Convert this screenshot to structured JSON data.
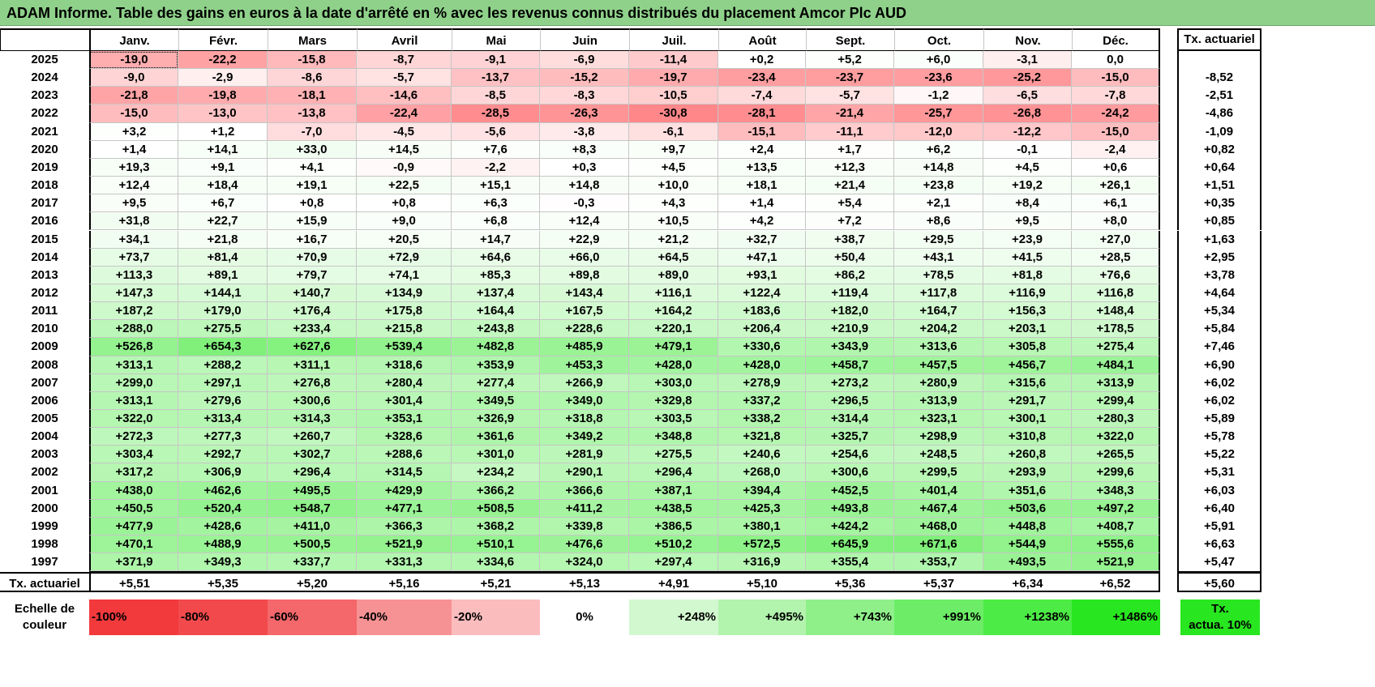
{
  "title": "ADAM Informe. Table des gains en euros à la date d'arrêté en % avec les revenus connus distribués du placement Amcor Plc AUD",
  "months": [
    "Janv.",
    "Févr.",
    "Mars",
    "Avril",
    "Mai",
    "Juin",
    "Juil.",
    "Août",
    "Sept.",
    "Oct.",
    "Nov.",
    "Déc."
  ],
  "tx_header": "Tx. actuariel",
  "rows": [
    {
      "year": "2025",
      "values": [
        "-19,0",
        "-22,2",
        "-15,8",
        "-8,7",
        "-9,1",
        "-6,9",
        "-11,4",
        "+0,2",
        "+5,2",
        "+6,0",
        "-3,1",
        "0,0"
      ],
      "tx": ""
    },
    {
      "year": "2024",
      "values": [
        "-9,0",
        "-2,9",
        "-8,6",
        "-5,7",
        "-13,7",
        "-15,2",
        "-19,7",
        "-23,4",
        "-23,7",
        "-23,6",
        "-25,2",
        "-15,0"
      ],
      "tx": "-8,52"
    },
    {
      "year": "2023",
      "values": [
        "-21,8",
        "-19,8",
        "-18,1",
        "-14,6",
        "-8,5",
        "-8,3",
        "-10,5",
        "-7,4",
        "-5,7",
        "-1,2",
        "-6,5",
        "-7,8"
      ],
      "tx": "-2,51"
    },
    {
      "year": "2022",
      "values": [
        "-15,0",
        "-13,0",
        "-13,8",
        "-22,4",
        "-28,5",
        "-26,3",
        "-30,8",
        "-28,1",
        "-21,4",
        "-25,7",
        "-26,8",
        "-24,2"
      ],
      "tx": "-4,86"
    },
    {
      "year": "2021",
      "values": [
        "+3,2",
        "+1,2",
        "-7,0",
        "-4,5",
        "-5,6",
        "-3,8",
        "-6,1",
        "-15,1",
        "-11,1",
        "-12,0",
        "-12,2",
        "-15,0"
      ],
      "tx": "-1,09"
    },
    {
      "year": "2020",
      "values": [
        "+1,4",
        "+14,1",
        "+33,0",
        "+14,5",
        "+7,6",
        "+8,3",
        "+9,7",
        "+2,4",
        "+1,7",
        "+6,2",
        "-0,1",
        "-2,4"
      ],
      "tx": "+0,82"
    },
    {
      "year": "2019",
      "values": [
        "+19,3",
        "+9,1",
        "+4,1",
        "-0,9",
        "-2,2",
        "+0,3",
        "+4,5",
        "+13,5",
        "+12,3",
        "+14,8",
        "+4,5",
        "+0,6"
      ],
      "tx": "+0,64"
    },
    {
      "year": "2018",
      "values": [
        "+12,4",
        "+18,4",
        "+19,1",
        "+22,5",
        "+15,1",
        "+14,8",
        "+10,0",
        "+18,1",
        "+21,4",
        "+23,8",
        "+19,2",
        "+26,1"
      ],
      "tx": "+1,51"
    },
    {
      "year": "2017",
      "values": [
        "+9,5",
        "+6,7",
        "+0,8",
        "+0,8",
        "+6,3",
        "-0,3",
        "+4,3",
        "+1,4",
        "+5,4",
        "+2,1",
        "+8,4",
        "+6,1"
      ],
      "tx": "+0,35"
    },
    {
      "year": "2016",
      "values": [
        "+31,8",
        "+22,7",
        "+15,9",
        "+9,0",
        "+6,8",
        "+12,4",
        "+10,5",
        "+4,2",
        "+7,2",
        "+8,6",
        "+9,5",
        "+8,0"
      ],
      "tx": "+0,85"
    },
    {
      "year": "2015",
      "values": [
        "+34,1",
        "+21,8",
        "+16,7",
        "+20,5",
        "+14,7",
        "+22,9",
        "+21,2",
        "+32,7",
        "+38,7",
        "+29,5",
        "+23,9",
        "+27,0"
      ],
      "tx": "+1,63"
    },
    {
      "year": "2014",
      "values": [
        "+73,7",
        "+81,4",
        "+70,9",
        "+72,9",
        "+64,6",
        "+66,0",
        "+64,5",
        "+47,1",
        "+50,4",
        "+43,1",
        "+41,5",
        "+28,5"
      ],
      "tx": "+2,95"
    },
    {
      "year": "2013",
      "values": [
        "+113,3",
        "+89,1",
        "+79,7",
        "+74,1",
        "+85,3",
        "+89,8",
        "+89,0",
        "+93,1",
        "+86,2",
        "+78,5",
        "+81,8",
        "+76,6"
      ],
      "tx": "+3,78"
    },
    {
      "year": "2012",
      "values": [
        "+147,3",
        "+144,1",
        "+140,7",
        "+134,9",
        "+137,4",
        "+143,4",
        "+116,1",
        "+122,4",
        "+119,4",
        "+117,8",
        "+116,9",
        "+116,8"
      ],
      "tx": "+4,64"
    },
    {
      "year": "2011",
      "values": [
        "+187,2",
        "+179,0",
        "+176,4",
        "+175,8",
        "+164,4",
        "+167,5",
        "+164,2",
        "+183,6",
        "+182,0",
        "+164,7",
        "+156,3",
        "+148,4"
      ],
      "tx": "+5,34"
    },
    {
      "year": "2010",
      "values": [
        "+288,0",
        "+275,5",
        "+233,4",
        "+215,8",
        "+243,8",
        "+228,6",
        "+220,1",
        "+206,4",
        "+210,9",
        "+204,2",
        "+203,1",
        "+178,5"
      ],
      "tx": "+5,84"
    },
    {
      "year": "2009",
      "values": [
        "+526,8",
        "+654,3",
        "+627,6",
        "+539,4",
        "+482,8",
        "+485,9",
        "+479,1",
        "+330,6",
        "+343,9",
        "+313,6",
        "+305,8",
        "+275,4"
      ],
      "tx": "+7,46"
    },
    {
      "year": "2008",
      "values": [
        "+313,1",
        "+288,2",
        "+311,1",
        "+318,6",
        "+353,9",
        "+453,3",
        "+428,0",
        "+428,0",
        "+458,7",
        "+457,5",
        "+456,7",
        "+484,1"
      ],
      "tx": "+6,90"
    },
    {
      "year": "2007",
      "values": [
        "+299,0",
        "+297,1",
        "+276,8",
        "+280,4",
        "+277,4",
        "+266,9",
        "+303,0",
        "+278,9",
        "+273,2",
        "+280,9",
        "+315,6",
        "+313,9"
      ],
      "tx": "+6,02"
    },
    {
      "year": "2006",
      "values": [
        "+313,1",
        "+279,6",
        "+300,6",
        "+301,4",
        "+349,5",
        "+349,0",
        "+329,8",
        "+337,2",
        "+296,5",
        "+313,9",
        "+291,7",
        "+299,4"
      ],
      "tx": "+6,02"
    },
    {
      "year": "2005",
      "values": [
        "+322,0",
        "+313,4",
        "+314,3",
        "+353,1",
        "+326,9",
        "+318,8",
        "+303,5",
        "+338,2",
        "+314,4",
        "+323,1",
        "+300,1",
        "+280,3"
      ],
      "tx": "+5,89"
    },
    {
      "year": "2004",
      "values": [
        "+272,3",
        "+277,3",
        "+260,7",
        "+328,6",
        "+361,6",
        "+349,2",
        "+348,8",
        "+321,8",
        "+325,7",
        "+298,9",
        "+310,8",
        "+322,0"
      ],
      "tx": "+5,78"
    },
    {
      "year": "2003",
      "values": [
        "+303,4",
        "+292,7",
        "+302,7",
        "+288,6",
        "+301,0",
        "+281,9",
        "+275,5",
        "+240,6",
        "+254,6",
        "+248,5",
        "+260,8",
        "+265,5"
      ],
      "tx": "+5,22"
    },
    {
      "year": "2002",
      "values": [
        "+317,2",
        "+306,9",
        "+296,4",
        "+314,5",
        "+234,2",
        "+290,1",
        "+296,4",
        "+268,0",
        "+300,6",
        "+299,5",
        "+293,9",
        "+299,6"
      ],
      "tx": "+5,31"
    },
    {
      "year": "2001",
      "values": [
        "+438,0",
        "+462,6",
        "+495,5",
        "+429,9",
        "+366,2",
        "+366,6",
        "+387,1",
        "+394,4",
        "+452,5",
        "+401,4",
        "+351,6",
        "+348,3"
      ],
      "tx": "+6,03"
    },
    {
      "year": "2000",
      "values": [
        "+450,5",
        "+520,4",
        "+548,7",
        "+477,1",
        "+508,5",
        "+411,2",
        "+438,5",
        "+425,3",
        "+493,8",
        "+467,4",
        "+503,6",
        "+497,2"
      ],
      "tx": "+6,40"
    },
    {
      "year": "1999",
      "values": [
        "+477,9",
        "+428,6",
        "+411,0",
        "+366,3",
        "+368,2",
        "+339,8",
        "+386,5",
        "+380,1",
        "+424,2",
        "+468,0",
        "+448,8",
        "+408,7"
      ],
      "tx": "+5,91"
    },
    {
      "year": "1998",
      "values": [
        "+470,1",
        "+488,9",
        "+500,5",
        "+521,9",
        "+510,1",
        "+476,6",
        "+510,2",
        "+572,5",
        "+645,9",
        "+671,6",
        "+544,9",
        "+555,6"
      ],
      "tx": "+6,63"
    },
    {
      "year": "1997",
      "values": [
        "+371,9",
        "+349,3",
        "+337,7",
        "+331,3",
        "+334,6",
        "+324,0",
        "+297,4",
        "+316,9",
        "+355,4",
        "+353,7",
        "+493,5",
        "+521,9"
      ],
      "tx": "+5,47"
    }
  ],
  "footer": {
    "label": "Tx. actuariel",
    "values": [
      "+5,51",
      "+5,35",
      "+5,20",
      "+5,16",
      "+5,21",
      "+5,13",
      "+4,91",
      "+5,10",
      "+5,36",
      "+5,37",
      "+6,34",
      "+6,52"
    ],
    "total": "+5,60"
  },
  "legend": {
    "label_line1": "Echelle de",
    "label_line2": "couleur",
    "scale": [
      {
        "text": "-100%",
        "color": "#f2393c"
      },
      {
        "text": "-80%",
        "color": "#f24a4c"
      },
      {
        "text": "-60%",
        "color": "#f4676a"
      },
      {
        "text": "-40%",
        "color": "#f79294"
      },
      {
        "text": "-20%",
        "color": "#fbbcbe"
      },
      {
        "text": "0%",
        "color": "#ffffff"
      },
      {
        "text": "+248%",
        "color": "#d2f8d0"
      },
      {
        "text": "+495%",
        "color": "#b2f3ad"
      },
      {
        "text": "+743%",
        "color": "#8ff08a"
      },
      {
        "text": "+991%",
        "color": "#6ded67"
      },
      {
        "text": "+1238%",
        "color": "#4ceb45"
      },
      {
        "text": "+1486%",
        "color": "#28e61f"
      }
    ],
    "tx_line1": "Tx.",
    "tx_line2": "actua. 10%",
    "tx_color": "#28e61f"
  },
  "colors": {
    "negative_max": "#f2393c",
    "positive_max": "#28e61f",
    "title_bar": "#8fd18a"
  }
}
